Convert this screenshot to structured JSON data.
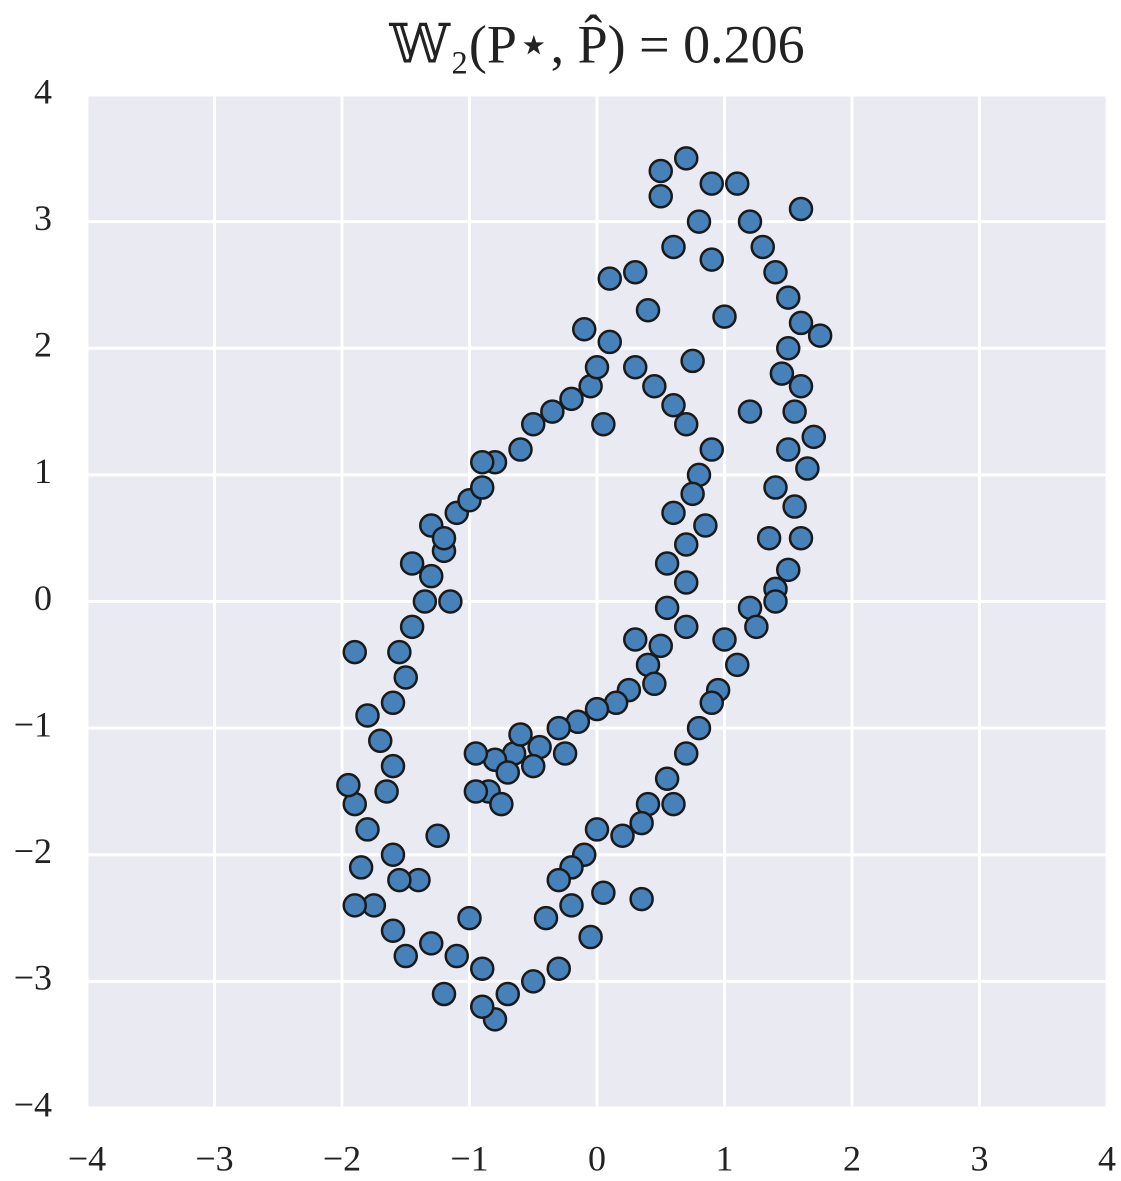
{
  "chart_data": {
    "type": "scatter",
    "title": "𝕎₂(P⋆, P̂) = 0.206",
    "color": "#4682b9",
    "edge_color": "#1a1a1a",
    "grid": true,
    "xlim": [
      -4,
      4
    ],
    "ylim": [
      -4,
      4
    ],
    "xticks": [
      {
        "value": -4,
        "label": "−4"
      },
      {
        "value": -3,
        "label": "−3"
      },
      {
        "value": -2,
        "label": "−2"
      },
      {
        "value": -1,
        "label": "−1"
      },
      0,
      1,
      2,
      3,
      4
    ],
    "yticks": [
      {
        "value": -4,
        "label": "−4"
      },
      {
        "value": -3,
        "label": "−3"
      },
      {
        "value": -2,
        "label": "−2"
      },
      {
        "value": -1,
        "label": "−1"
      },
      0,
      1,
      2,
      3,
      4
    ],
    "x": [
      0.5,
      0.7,
      0.9,
      1.1,
      0.5,
      0.8,
      1.2,
      1.6,
      0.6,
      0.9,
      1.3,
      1.4,
      0.3,
      0.1,
      1.5,
      1.0,
      1.6,
      1.75,
      1.5,
      1.45,
      1.6,
      1.2,
      1.55,
      1.7,
      1.5,
      1.65,
      1.4,
      1.55,
      1.35,
      1.6,
      1.5,
      1.4,
      1.4,
      1.2,
      1.25,
      1.0,
      1.1,
      0.95,
      0.9,
      0.8,
      0.7,
      0.55,
      0.6,
      0.4,
      0.35,
      0.2,
      0.0,
      -0.1,
      -0.2,
      -0.3,
      0.05,
      -0.2,
      -0.4,
      -0.3,
      -0.5,
      -0.7,
      -0.8,
      -0.9,
      -1.2,
      -0.9,
      -1.1,
      -1.3,
      -1.5,
      -1.6,
      -1.75,
      -1.9,
      -1.85,
      -1.6,
      -1.8,
      -1.9,
      -1.65,
      -1.95,
      -1.6,
      -1.7,
      -1.8,
      -1.6,
      -1.5,
      -1.9,
      -1.55,
      -1.45,
      -1.35,
      -1.3,
      -1.45,
      -1.2,
      -1.3,
      -1.1,
      -1.0,
      -0.9,
      -0.8,
      -0.9,
      -0.6,
      -0.5,
      -0.35,
      -0.2,
      -0.05,
      0.0,
      -0.1,
      0.1,
      0.3,
      0.45,
      0.6,
      0.75,
      0.7,
      0.9,
      0.8,
      0.75,
      0.85,
      0.6,
      0.7,
      0.55,
      0.7,
      0.55,
      0.7,
      0.5,
      0.4,
      0.45,
      0.25,
      0.15,
      0.0,
      -0.15,
      -0.3,
      -0.25,
      -0.45,
      -0.5,
      -0.65,
      -0.8,
      -0.95,
      -0.85,
      -0.75,
      -0.7,
      -0.95,
      -0.6,
      0.3,
      0.05,
      0.4,
      0.35,
      -0.05,
      -1.25,
      -1.4,
      -1.0,
      -1.55,
      -1.2,
      -1.15
    ],
    "values": [
      3.4,
      3.5,
      3.3,
      3.3,
      3.2,
      3.0,
      3.0,
      3.1,
      2.8,
      2.7,
      2.8,
      2.6,
      2.6,
      2.55,
      2.4,
      2.25,
      2.2,
      2.1,
      2.0,
      1.8,
      1.7,
      1.5,
      1.5,
      1.3,
      1.2,
      1.05,
      0.9,
      0.75,
      0.5,
      0.5,
      0.25,
      0.1,
      0.0,
      -0.05,
      -0.2,
      -0.3,
      -0.5,
      -0.7,
      -0.8,
      -1.0,
      -1.2,
      -1.4,
      -1.6,
      -1.6,
      -1.75,
      -1.85,
      -1.8,
      -2.0,
      -2.1,
      -2.2,
      -2.3,
      -2.4,
      -2.5,
      -2.9,
      -3.0,
      -3.1,
      -3.3,
      -3.2,
      -3.1,
      -2.9,
      -2.8,
      -2.7,
      -2.8,
      -2.6,
      -2.4,
      -2.4,
      -2.1,
      -2.0,
      -1.8,
      -1.6,
      -1.5,
      -1.45,
      -1.3,
      -1.1,
      -0.9,
      -0.8,
      -0.6,
      -0.4,
      -0.4,
      -0.2,
      0.0,
      0.2,
      0.3,
      0.4,
      0.6,
      0.7,
      0.8,
      0.9,
      1.1,
      1.1,
      1.2,
      1.4,
      1.5,
      1.6,
      1.7,
      1.85,
      2.15,
      2.05,
      1.85,
      1.7,
      1.55,
      1.9,
      1.4,
      1.2,
      1.0,
      0.85,
      0.6,
      0.7,
      0.45,
      0.3,
      0.15,
      -0.05,
      -0.2,
      -0.35,
      -0.5,
      -0.65,
      -0.7,
      -0.8,
      -0.85,
      -0.95,
      -1.0,
      -1.2,
      -1.15,
      -1.3,
      -1.2,
      -1.25,
      -1.2,
      -1.5,
      -1.6,
      -1.35,
      -1.5,
      -1.05,
      -0.3,
      1.4,
      2.3,
      -2.35,
      -2.65,
      -1.85,
      -2.2,
      -2.5,
      -2.2,
      0.5,
      0.0
    ]
  }
}
